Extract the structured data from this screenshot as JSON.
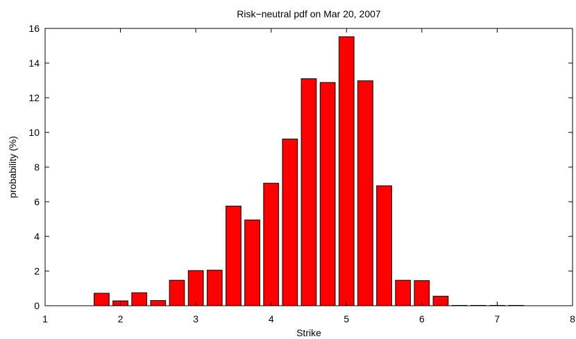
{
  "chart_data": {
    "type": "bar",
    "title": "Risk−neutral pdf on Mar 20, 2007",
    "xlabel": "Strike",
    "ylabel": "probability (%)",
    "xlim": [
      1,
      8
    ],
    "ylim": [
      0,
      16
    ],
    "xticks": [
      1,
      2,
      3,
      4,
      5,
      6,
      7,
      8
    ],
    "yticks": [
      0,
      2,
      4,
      6,
      8,
      10,
      12,
      14,
      16
    ],
    "grid": false,
    "legend": "none",
    "bar_color": "#ff0000",
    "bar_edge_color": "#000000",
    "bar_width": 0.2,
    "x": [
      1.75,
      2.0,
      2.25,
      2.5,
      2.75,
      3.0,
      3.25,
      3.5,
      3.75,
      4.0,
      4.25,
      4.5,
      4.75,
      5.0,
      5.25,
      5.5,
      5.75,
      6.0,
      6.25,
      6.5,
      6.75,
      7.0,
      7.25
    ],
    "values": [
      0.72,
      0.28,
      0.75,
      0.3,
      1.47,
      2.03,
      2.05,
      5.75,
      4.95,
      7.07,
      9.62,
      13.1,
      12.88,
      15.52,
      12.98,
      6.92,
      1.47,
      1.45,
      0.55,
      0.02,
      0.02,
      0.02,
      0.02
    ]
  }
}
